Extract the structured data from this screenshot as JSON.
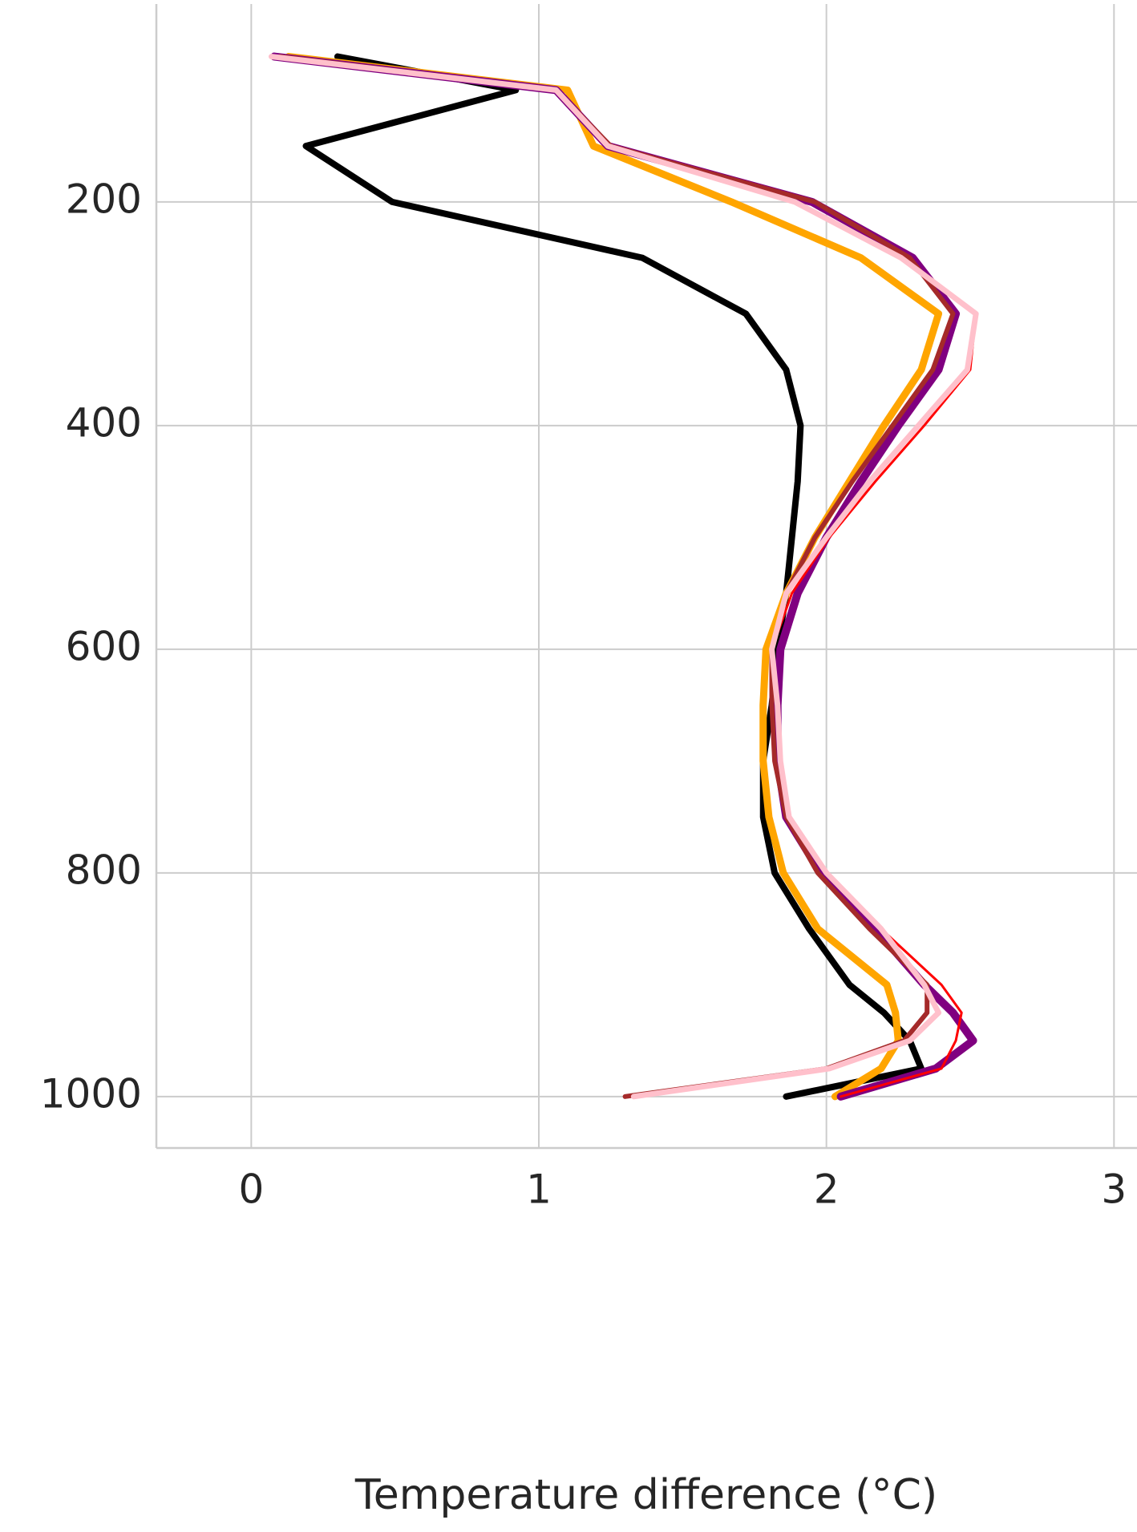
{
  "chart_data": {
    "type": "line",
    "x_label": "Temperature difference (°C)",
    "y": [
      70,
      100,
      150,
      200,
      250,
      300,
      350,
      400,
      450,
      500,
      550,
      600,
      650,
      700,
      750,
      800,
      850,
      900,
      925,
      950,
      975,
      1000
    ],
    "series": [
      {
        "color": "#000000",
        "values": [
          0.3,
          0.92,
          0.19,
          0.49,
          1.36,
          1.72,
          1.86,
          1.91,
          1.9,
          1.88,
          1.86,
          1.83,
          1.81,
          1.78,
          1.78,
          1.82,
          1.94,
          2.08,
          2.2,
          2.29,
          2.33,
          1.86
        ]
      },
      {
        "color": "#ffa500",
        "values": [
          0.13,
          1.1,
          1.19,
          1.67,
          2.12,
          2.39,
          2.33,
          2.2,
          2.08,
          1.96,
          1.86,
          1.79,
          1.78,
          1.78,
          1.8,
          1.85,
          1.97,
          2.21,
          2.24,
          2.25,
          2.19,
          2.03
        ]
      },
      {
        "color": "#800080",
        "values": [
          0.08,
          1.06,
          1.24,
          1.95,
          2.3,
          2.45,
          2.39,
          2.25,
          2.12,
          2.0,
          1.9,
          1.84,
          1.83,
          1.83,
          1.86,
          1.98,
          2.17,
          2.34,
          2.44,
          2.51,
          2.38,
          2.05
        ]
      },
      {
        "color": "#ff0000",
        "values": [
          0.07,
          1.06,
          1.24,
          1.89,
          2.26,
          2.52,
          2.5,
          2.34,
          2.17,
          2.01,
          1.88,
          1.81,
          1.83,
          1.84,
          1.87,
          2.0,
          2.19,
          2.4,
          2.47,
          2.45,
          2.4,
          2.05
        ]
      },
      {
        "color": "#a52a2a",
        "values": [
          0.1,
          1.06,
          1.25,
          1.96,
          2.29,
          2.44,
          2.37,
          2.23,
          2.09,
          1.96,
          1.86,
          1.81,
          1.81,
          1.82,
          1.86,
          1.97,
          2.15,
          2.35,
          2.35,
          2.27,
          2.0,
          1.3
        ]
      },
      {
        "color": "#ffc0cb",
        "values": [
          0.07,
          1.06,
          1.24,
          1.89,
          2.26,
          2.52,
          2.49,
          2.32,
          2.15,
          2.0,
          1.86,
          1.81,
          1.83,
          1.84,
          1.87,
          2.0,
          2.19,
          2.34,
          2.39,
          2.29,
          2.01,
          1.33
        ]
      }
    ],
    "xlim": [
      -0.33,
      3.08
    ],
    "xticks": [
      0,
      1,
      2,
      3
    ],
    "ylim": [
      1046,
      23
    ],
    "yticks": [
      200,
      400,
      600,
      800,
      1000
    ],
    "grid": true
  }
}
